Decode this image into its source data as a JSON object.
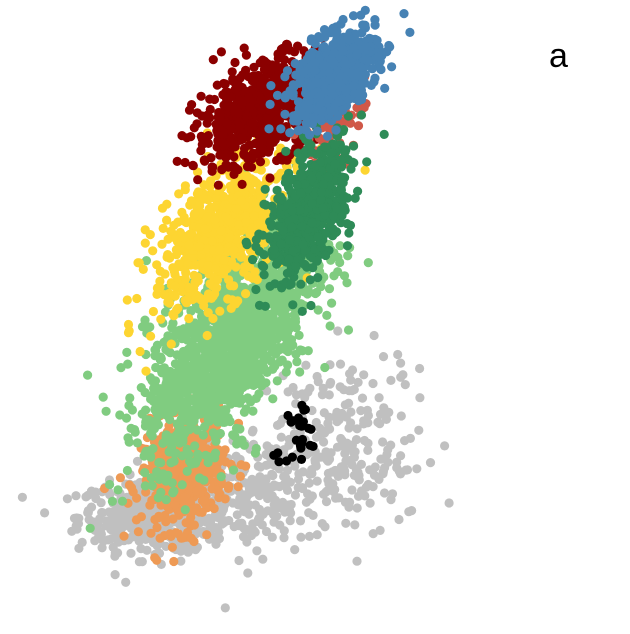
{
  "panel_label": "a",
  "chart_data": {
    "type": "scatter",
    "title": "",
    "xlabel": "",
    "ylabel": "",
    "axes_visible": false,
    "grid": false,
    "legend": "none",
    "xlim": [
      0,
      100
    ],
    "ylim": [
      0,
      100
    ],
    "series": [
      {
        "color": "#c0c0c0",
        "count": 900,
        "clusters": [
          {
            "cx": 20,
            "cy": 12,
            "sx": 9,
            "sy": 3,
            "rho": 0,
            "w": 0.45
          },
          {
            "cx": 45,
            "cy": 16,
            "sx": 14,
            "sy": 5,
            "rho": 0.3,
            "w": 0.35
          },
          {
            "cx": 58,
            "cy": 28,
            "sx": 9,
            "sy": 7,
            "rho": 0.4,
            "w": 0.12
          },
          {
            "cx": 72,
            "cy": 22,
            "sx": 8,
            "sy": 8,
            "rho": 0,
            "w": 0.08
          }
        ]
      },
      {
        "color": "#ee9a55",
        "count": 450,
        "clusters": [
          {
            "cx": 27,
            "cy": 20,
            "sx": 5,
            "sy": 5,
            "rho": 0.2,
            "w": 1
          }
        ]
      },
      {
        "color": "#80cc80",
        "count": 1500,
        "clusters": [
          {
            "cx": 38,
            "cy": 43,
            "sx": 10,
            "sy": 10,
            "rho": 0.65,
            "w": 1
          }
        ]
      },
      {
        "color": "#fdd531",
        "count": 650,
        "clusters": [
          {
            "cx": 36,
            "cy": 62,
            "sx": 8,
            "sy": 7,
            "rho": 0.55,
            "w": 1
          }
        ]
      },
      {
        "color": "#8b0000",
        "count": 650,
        "clusters": [
          {
            "cx": 46,
            "cy": 84,
            "sx": 8,
            "sy": 5,
            "rho": 0.5,
            "w": 1
          }
        ]
      },
      {
        "color": "#d05848",
        "count": 90,
        "clusters": [
          {
            "cx": 62,
            "cy": 82,
            "sx": 4,
            "sy": 4,
            "rho": 0.4,
            "w": 1
          }
        ]
      },
      {
        "color": "#2e8b57",
        "count": 600,
        "clusters": [
          {
            "cx": 57,
            "cy": 66,
            "sx": 5,
            "sy": 6,
            "rho": 0.55,
            "w": 1
          }
        ]
      },
      {
        "color": "#4682b4",
        "count": 700,
        "clusters": [
          {
            "cx": 63,
            "cy": 90,
            "sx": 5,
            "sy": 4,
            "rho": 0.5,
            "w": 1
          }
        ]
      },
      {
        "color": "#000000",
        "count": 26,
        "clusters": [
          {
            "cx": 54,
            "cy": 27,
            "sx": 3,
            "sy": 3,
            "rho": 0.2,
            "w": 1
          }
        ]
      }
    ]
  }
}
